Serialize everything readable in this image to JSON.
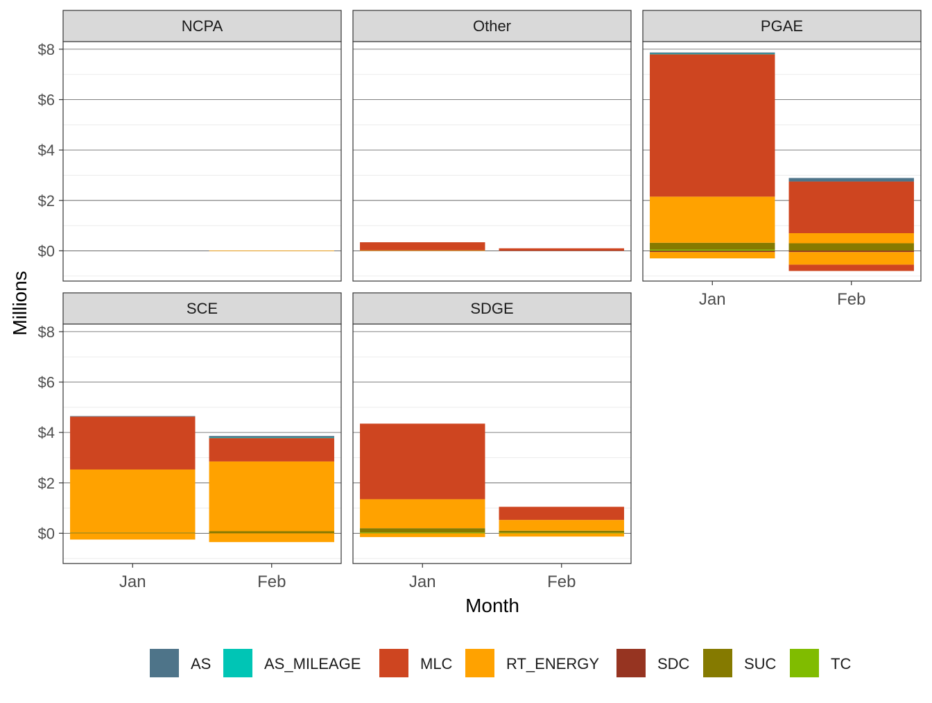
{
  "chart_data": {
    "type": "bar",
    "stacked": true,
    "faceted": true,
    "xlabel": "Month",
    "ylabel": "Millions",
    "ylim": [
      -1.2,
      8.3
    ],
    "y_ticks": [
      0,
      2,
      4,
      6,
      8
    ],
    "y_tick_labels": [
      "$0",
      "$2",
      "$4",
      "$6",
      "$8"
    ],
    "categories": [
      "Jan",
      "Feb"
    ],
    "legend_position": "bottom",
    "grid": true,
    "series_order": [
      "AS",
      "AS_MILEAGE",
      "MLC",
      "RT_ENERGY",
      "SDC",
      "SUC",
      "TC"
    ],
    "series_colors": {
      "AS": "#4E7489",
      "AS_MILEAGE": "#00C5B5",
      "MLC": "#CE4520",
      "RT_ENERGY": "#FFA200",
      "SDC": "#963421",
      "SUC": "#857A00",
      "TC": "#80BC00"
    },
    "legend": [
      {
        "name": "AS",
        "color": "#4E7489"
      },
      {
        "name": "AS_MILEAGE",
        "color": "#00C5B5"
      },
      {
        "name": "MLC",
        "color": "#CE4520"
      },
      {
        "name": "RT_ENERGY",
        "color": "#FFA200"
      },
      {
        "name": "SDC",
        "color": "#963421"
      },
      {
        "name": "SUC",
        "color": "#857A00"
      },
      {
        "name": "TC",
        "color": "#80BC00"
      }
    ],
    "panels": [
      {
        "name": "NCPA",
        "bars": {
          "Jan": {},
          "Feb": {
            "RT_ENERGY": 0.01
          }
        }
      },
      {
        "name": "Other",
        "bars": {
          "Jan": {
            "RT_ENERGY": 0.02,
            "MLC": 0.32
          },
          "Feb": {
            "MLC": 0.1
          }
        }
      },
      {
        "name": "PGAE",
        "bars": {
          "Jan": {
            "TC": 0.05,
            "SUC": 0.27,
            "RT_ENERGY": 1.83,
            "MLC": 5.65,
            "AS": 0.05,
            "AS_MILEAGE": 0.02,
            "SDC": -0.05,
            "RT_ENERGY_neg": -0.25
          },
          "Feb": {
            "SUC": 0.3,
            "RT_ENERGY": 0.4,
            "MLC": 2.05,
            "AS": 0.14,
            "SDC": -0.05,
            "RT_ENERGY_neg": -0.5,
            "MLC_neg": -0.25
          }
        }
      },
      {
        "name": "SCE",
        "bars": {
          "Jan": {
            "SUC": 0.03,
            "RT_ENERGY": 2.5,
            "MLC": 2.1,
            "AS": 0.02,
            "RT_ENERGY_neg": -0.25
          },
          "Feb": {
            "SUC": 0.08,
            "RT_ENERGY": 2.77,
            "MLC": 0.93,
            "AS_MILEAGE": 0.02,
            "AS": 0.06,
            "RT_ENERGY_neg": -0.35
          }
        }
      },
      {
        "name": "SDGE",
        "bars": {
          "Jan": {
            "TC": 0.03,
            "SUC": 0.17,
            "RT_ENERGY": 1.15,
            "MLC": 3.0,
            "RT_ENERGY_neg": -0.15
          },
          "Feb": {
            "TC": 0.02,
            "SUC": 0.08,
            "RT_ENERGY": 0.43,
            "MLC": 0.52,
            "RT_ENERGY_neg": -0.13
          }
        }
      }
    ]
  }
}
